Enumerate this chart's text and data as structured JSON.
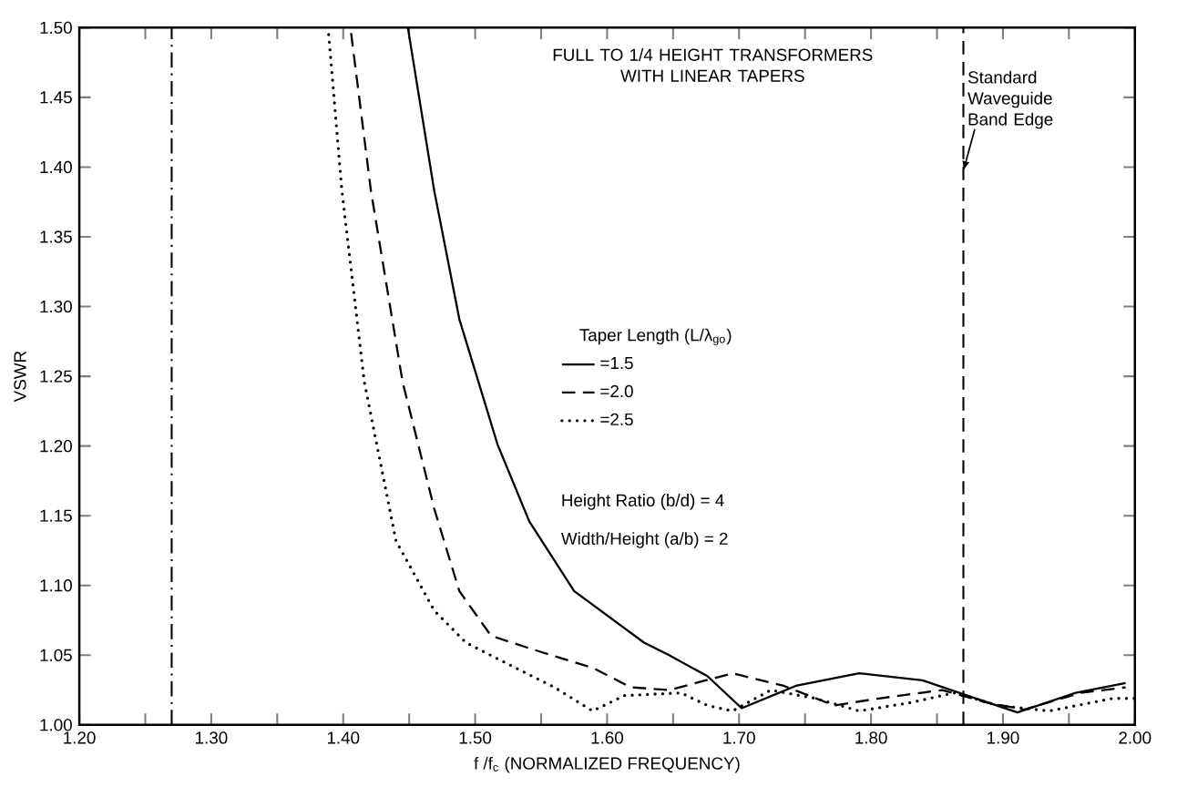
{
  "chart_data": {
    "type": "line",
    "title": "FULL TO 1/4 HEIGHT TRANSFORMERS WITH LINEAR TAPERS",
    "xlabel": "f /f$_{c}$ (NORMALIZED FREQUENCY)",
    "ylabel": "VSWR",
    "xlim": [
      1.2,
      2.0
    ],
    "ylim": [
      1.0,
      1.5
    ],
    "xticks": [
      {
        "value": 1.2,
        "label": "1.20"
      },
      {
        "value": 1.25,
        "label": null
      },
      {
        "value": 1.3,
        "label": "1.30"
      },
      {
        "value": 1.35,
        "label": null
      },
      {
        "value": 1.4,
        "label": "1.40"
      },
      {
        "value": 1.45,
        "label": null
      },
      {
        "value": 1.5,
        "label": "1.50"
      },
      {
        "value": 1.55,
        "label": null
      },
      {
        "value": 1.6,
        "label": "1.60"
      },
      {
        "value": 1.65,
        "label": null
      },
      {
        "value": 1.7,
        "label": "1.70"
      },
      {
        "value": 1.75,
        "label": null
      },
      {
        "value": 1.8,
        "label": "1.80"
      },
      {
        "value": 1.85,
        "label": null
      },
      {
        "value": 1.9,
        "label": "1.90"
      },
      {
        "value": 1.95,
        "label": null
      },
      {
        "value": 2.0,
        "label": "2.00"
      }
    ],
    "yticks": [
      {
        "value": 1.0,
        "label": "1.00"
      },
      {
        "value": 1.05,
        "label": "1.05"
      },
      {
        "value": 1.1,
        "label": "1.10"
      },
      {
        "value": 1.15,
        "label": "1.15"
      },
      {
        "value": 1.2,
        "label": "1.20"
      },
      {
        "value": 1.25,
        "label": "1.25"
      },
      {
        "value": 1.3,
        "label": "1.30"
      },
      {
        "value": 1.35,
        "label": "1.35"
      },
      {
        "value": 1.4,
        "label": "1.40"
      },
      {
        "value": 1.45,
        "label": "1.45"
      },
      {
        "value": 1.5,
        "label": "1.50"
      }
    ],
    "legend": "center",
    "legend_title": "Taper Length (L/λ$_{go}$)",
    "grid": false,
    "marker": "none",
    "series": [
      {
        "name": "=1.5",
        "color": "#000000",
        "line_style": "solid",
        "x": [
          1.449,
          1.469,
          1.488,
          1.517,
          1.541,
          1.575,
          1.628,
          1.647,
          1.676,
          1.702,
          1.743,
          1.791,
          1.839,
          1.873,
          1.911,
          1.955,
          1.993
        ],
        "values": [
          1.5,
          1.383,
          1.291,
          1.201,
          1.146,
          1.096,
          1.059,
          1.05,
          1.035,
          1.012,
          1.028,
          1.037,
          1.032,
          1.021,
          1.009,
          1.023,
          1.03
        ]
      },
      {
        "name": "=2.0",
        "color": "#000000",
        "line_style": "dashed",
        "x": [
          1.406,
          1.421,
          1.445,
          1.469,
          1.488,
          1.512,
          1.541,
          1.551,
          1.589,
          1.618,
          1.647,
          1.695,
          1.734,
          1.772,
          1.806,
          1.854,
          1.888,
          1.916,
          1.959,
          1.993
        ],
        "values": [
          1.496,
          1.383,
          1.246,
          1.155,
          1.096,
          1.064,
          1.055,
          1.052,
          1.041,
          1.027,
          1.025,
          1.037,
          1.028,
          1.014,
          1.019,
          1.025,
          1.016,
          1.011,
          1.023,
          1.027
        ]
      },
      {
        "name": "=2.5",
        "color": "#000000",
        "line_style": "dotted",
        "x": [
          1.389,
          1.399,
          1.416,
          1.44,
          1.469,
          1.493,
          1.522,
          1.56,
          1.589,
          1.613,
          1.656,
          1.676,
          1.695,
          1.724,
          1.758,
          1.791,
          1.83,
          1.863,
          1.896,
          1.935,
          1.983,
          2.0
        ],
        "values": [
          1.495,
          1.383,
          1.246,
          1.132,
          1.082,
          1.059,
          1.045,
          1.027,
          1.01,
          1.021,
          1.023,
          1.014,
          1.01,
          1.025,
          1.019,
          1.01,
          1.016,
          1.023,
          1.014,
          1.01,
          1.019,
          1.019
        ]
      }
    ],
    "ref_lines": [
      {
        "axis": "x",
        "value": 1.27,
        "line_style": "dashdot"
      },
      {
        "axis": "x",
        "value": 1.87,
        "line_style": "dashed",
        "label": "Standard Waveguide Band Edge"
      }
    ],
    "annotations": [
      "Height Ratio (b/d) = 4",
      "Width/Height (a/b) = 2"
    ]
  }
}
